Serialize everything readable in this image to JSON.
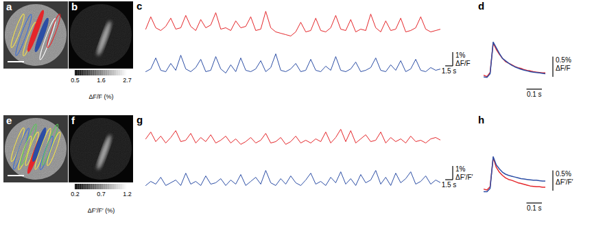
{
  "chart_data": [
    {
      "title": "a",
      "type": "image"
    },
    {
      "title": "b",
      "type": "image",
      "colorbar": {
        "range": [
          0.5,
          2.7
        ],
        "ticks": [
          0.5,
          1.6,
          2.7
        ],
        "label": "ΔF/F (%)"
      }
    },
    {
      "title": "c",
      "type": "line",
      "tick_labels": false,
      "x": [
        0,
        1,
        2,
        3,
        4,
        5,
        6,
        7,
        8,
        9,
        10,
        11,
        12,
        13,
        14,
        15,
        16,
        17,
        18,
        19,
        20,
        21,
        22,
        23,
        24,
        25,
        26,
        27,
        28,
        29,
        30,
        31,
        32,
        33,
        34,
        35,
        36,
        37,
        38,
        39,
        40,
        41,
        42,
        43,
        44,
        45,
        46,
        47,
        48,
        49,
        50,
        51,
        52,
        53,
        54,
        55,
        56,
        57,
        58,
        59
      ],
      "xlim": [
        0,
        59
      ],
      "ylim": [
        -0.3,
        2.2
      ],
      "series": [
        {
          "color": "#e5262a",
          "values": [
            0.5,
            1.4,
            0.6,
            0.4,
            0.7,
            1.3,
            0.5,
            0.6,
            1.5,
            0.7,
            0.4,
            1.2,
            0.6,
            0.8,
            1.7,
            0.5,
            0.6,
            0.4,
            1.1,
            0.6,
            0.7,
            1.4,
            0.4,
            0.5,
            1.8,
            0.6,
            0.3,
            0.2,
            0.1,
            0.0,
            0.3,
            1.0,
            0.3,
            0.4,
            1.3,
            0.4,
            0.3,
            0.6,
            1.5,
            0.5,
            0.4,
            1.2,
            0.3,
            0.5,
            0.4,
            1.6,
            0.6,
            0.3,
            1.1,
            0.4,
            0.5,
            1.3,
            0.3,
            0.4,
            0.6,
            1.4,
            0.5,
            0.3,
            0.4,
            0.5
          ]
        },
        {
          "color": "#2c4ea5",
          "values": [
            0.3,
            0.5,
            1.3,
            0.4,
            0.3,
            0.9,
            0.4,
            1.5,
            0.5,
            0.3,
            0.6,
            1.2,
            0.3,
            0.4,
            1.4,
            0.5,
            0.2,
            0.8,
            0.3,
            1.3,
            0.4,
            0.3,
            0.5,
            1.1,
            0.3,
            0.6,
            1.6,
            0.4,
            0.3,
            0.5,
            0.9,
            0.3,
            0.4,
            1.2,
            0.4,
            0.3,
            0.7,
            0.4,
            1.4,
            0.4,
            0.3,
            0.5,
            1.0,
            0.3,
            0.4,
            0.6,
            1.3,
            0.4,
            0.3,
            0.8,
            0.4,
            1.1,
            0.3,
            0.5,
            1.2,
            0.4,
            0.3,
            0.6,
            0.4,
            0.5
          ]
        }
      ],
      "scale_bar": {
        "x": 1.5,
        "x_label": "1.5 s",
        "y": 1,
        "y_label": "1%",
        "y_unit": "ΔF/F"
      }
    },
    {
      "title": "d",
      "type": "line",
      "tick_labels": false,
      "x": [
        -0.06,
        -0.04,
        -0.02,
        0,
        0.02,
        0.04,
        0.06,
        0.08,
        0.1,
        0.12,
        0.14,
        0.16,
        0.18,
        0.2,
        0.22,
        0.24,
        0.26,
        0.28,
        0.3,
        0.32,
        0.34
      ],
      "xlim": [
        -0.06,
        0.34
      ],
      "ylim": [
        -0.1,
        1.0
      ],
      "series": [
        {
          "color": "#e5262a",
          "values": [
            0.08,
            0.05,
            0.15,
            0.88,
            0.72,
            0.6,
            0.5,
            0.42,
            0.38,
            0.34,
            0.3,
            0.27,
            0.25,
            0.22,
            0.2,
            0.19,
            0.17,
            0.16,
            0.15,
            0.14,
            0.14
          ]
        },
        {
          "color": "#2c4ea5",
          "values": [
            0.04,
            0.03,
            0.12,
            0.9,
            0.76,
            0.62,
            0.5,
            0.44,
            0.38,
            0.33,
            0.29,
            0.26,
            0.23,
            0.21,
            0.19,
            0.17,
            0.16,
            0.15,
            0.14,
            0.13,
            0.12
          ]
        }
      ],
      "scale_bar": {
        "x": 0.1,
        "x_label": "0.1 s",
        "y": 0.5,
        "y_label": "0.5%",
        "y_unit": "ΔF/F"
      }
    },
    {
      "title": "e",
      "type": "image"
    },
    {
      "title": "f",
      "type": "image",
      "colorbar": {
        "range": [
          0.2,
          1.2
        ],
        "ticks": [
          0.2,
          0.7,
          1.2
        ],
        "label": "ΔF′/F′ (%)"
      }
    },
    {
      "title": "g",
      "type": "line",
      "tick_labels": false,
      "x": [
        0,
        1,
        2,
        3,
        4,
        5,
        6,
        7,
        8,
        9,
        10,
        11,
        12,
        13,
        14,
        15,
        16,
        17,
        18,
        19,
        20,
        21,
        22,
        23,
        24,
        25,
        26,
        27,
        28,
        29,
        30,
        31,
        32,
        33,
        34,
        35,
        36,
        37,
        38,
        39,
        40,
        41,
        42,
        43,
        44,
        45,
        46,
        47,
        48,
        49,
        50,
        51,
        52,
        53,
        54,
        55,
        56,
        57,
        58,
        59
      ],
      "xlim": [
        0,
        59
      ],
      "ylim": [
        -0.3,
        2.2
      ],
      "series": [
        {
          "color": "#e5262a",
          "values": [
            0.8,
            1.3,
            0.6,
            1.0,
            0.5,
            0.9,
            1.4,
            0.6,
            0.7,
            1.2,
            0.5,
            0.9,
            0.6,
            1.1,
            0.5,
            0.7,
            1.0,
            0.5,
            0.8,
            0.4,
            0.6,
            0.9,
            0.5,
            0.7,
            1.2,
            0.5,
            0.6,
            0.9,
            0.4,
            0.6,
            1.0,
            0.5,
            0.7,
            0.5,
            0.8,
            0.6,
            1.3,
            0.5,
            0.9,
            1.5,
            0.6,
            1.4,
            0.5,
            0.8,
            1.1,
            0.6,
            0.7,
            1.3,
            0.5,
            0.9,
            0.6,
            0.8,
            0.5,
            1.0,
            0.6,
            0.7,
            0.5,
            0.8,
            0.9,
            0.7
          ]
        },
        {
          "color": "#2c4ea5",
          "values": [
            0.3,
            0.6,
            0.4,
            0.9,
            0.3,
            0.5,
            0.7,
            0.3,
            1.2,
            0.4,
            0.6,
            0.3,
            1.0,
            0.4,
            0.5,
            0.8,
            0.3,
            0.7,
            0.4,
            1.1,
            0.3,
            0.6,
            0.9,
            0.4,
            1.4,
            0.5,
            0.3,
            0.8,
            0.4,
            1.0,
            0.5,
            0.3,
            0.7,
            1.2,
            0.4,
            0.6,
            0.3,
            0.9,
            0.5,
            1.3,
            0.4,
            0.8,
            0.3,
            1.1,
            0.5,
            0.7,
            1.4,
            0.4,
            0.9,
            0.3,
            1.2,
            0.5,
            0.8,
            1.3,
            0.4,
            0.6,
            1.0,
            0.4,
            0.7,
            0.5
          ]
        }
      ],
      "scale_bar": {
        "x": 1.5,
        "x_label": "1.5 s",
        "y": 1,
        "y_label": "1%",
        "y_unit": "ΔF′/F′"
      }
    },
    {
      "title": "h",
      "type": "line",
      "tick_labels": false,
      "x": [
        -0.06,
        -0.04,
        -0.02,
        0,
        0.02,
        0.04,
        0.06,
        0.08,
        0.1,
        0.12,
        0.14,
        0.16,
        0.18,
        0.2,
        0.22,
        0.24,
        0.26,
        0.28,
        0.3,
        0.32,
        0.34
      ],
      "xlim": [
        -0.06,
        0.34
      ],
      "ylim": [
        -0.1,
        1.0
      ],
      "series": [
        {
          "color": "#e5262a",
          "values": [
            0.08,
            0.06,
            0.14,
            0.86,
            0.62,
            0.5,
            0.42,
            0.36,
            0.32,
            0.3,
            0.27,
            0.24,
            0.22,
            0.2,
            0.18,
            0.16,
            0.15,
            0.14,
            0.14,
            0.13,
            0.13
          ]
        },
        {
          "color": "#2c4ea5",
          "values": [
            0.02,
            0.02,
            0.1,
            0.88,
            0.68,
            0.58,
            0.5,
            0.45,
            0.42,
            0.4,
            0.38,
            0.36,
            0.34,
            0.33,
            0.32,
            0.31,
            0.3,
            0.3,
            0.29,
            0.28,
            0.28
          ]
        }
      ],
      "scale_bar": {
        "x": 0.1,
        "x_label": "0.1 s",
        "y": 0.5,
        "y_label": "0.5%",
        "y_unit": "ΔF′/F′"
      }
    }
  ]
}
